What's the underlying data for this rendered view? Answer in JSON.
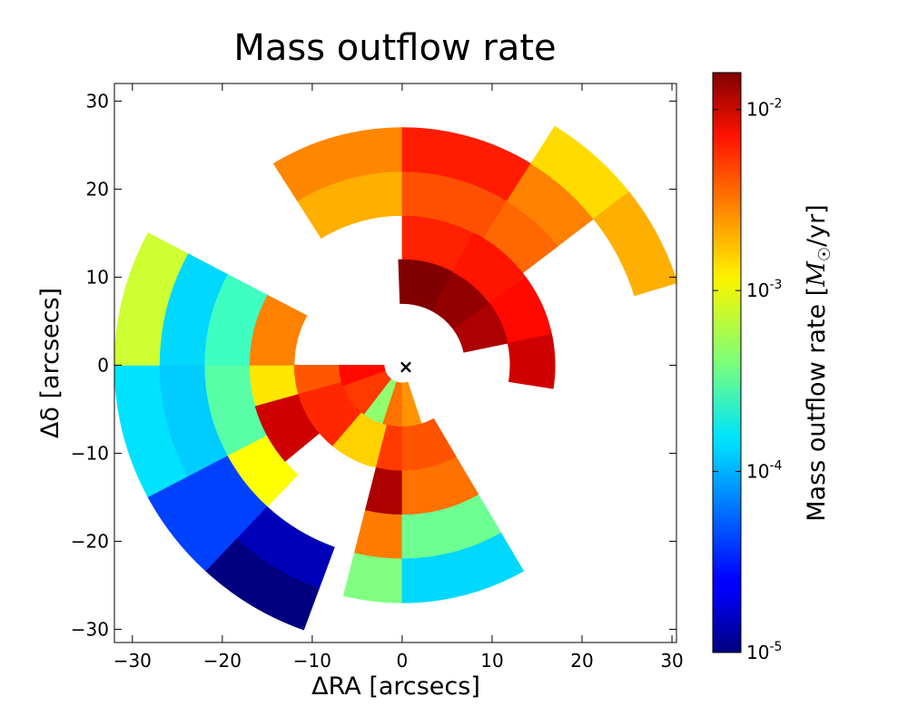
{
  "chart_data": {
    "type": "heatmap",
    "title": "Mass outflow rate",
    "xlabel": "ΔRA [arcsecs]",
    "ylabel": "Δδ [arcsecs]",
    "xlim": [
      -32,
      30.5
    ],
    "ylim": [
      -31.5,
      32
    ],
    "xticks": [
      -30,
      -20,
      -10,
      0,
      10,
      20,
      30
    ],
    "yticks": [
      -30,
      -20,
      -10,
      0,
      10,
      20,
      30
    ],
    "xtick_labels": [
      "−30",
      "−20",
      "−10",
      "0",
      "10",
      "20",
      "30"
    ],
    "ytick_labels": [
      "−30",
      "−20",
      "−10",
      "0",
      "10",
      "20",
      "30"
    ],
    "center_marker": {
      "x": 0,
      "y": 0,
      "symbol": "×"
    },
    "colorbar": {
      "label": "Mass outflow rate [M☉/yr]",
      "label_prefix": "Mass outflow rate ",
      "label_unit_symbol": "M",
      "label_unit_sub": "☉",
      "label_unit_rest": "/yr",
      "scale": "log",
      "min": 1e-05,
      "max": 0.016,
      "colormap": "jet",
      "ticks": [
        {
          "value": 1e-05,
          "base": "10",
          "exp": "-5"
        },
        {
          "value": 0.0001,
          "base": "10",
          "exp": "-4"
        },
        {
          "value": 0.001,
          "base": "10",
          "exp": "-3"
        },
        {
          "value": 0.01,
          "base": "10",
          "exp": "-2"
        }
      ]
    },
    "annular_sectors": [
      {
        "r_inner": 17,
        "r_outer": 22,
        "theta_start": 90,
        "theta_end": 122,
        "value": 0.0018
      },
      {
        "r_inner": 22,
        "r_outer": 27,
        "theta_start": 90,
        "theta_end": 122,
        "value": 0.0024
      },
      {
        "r_inner": 12,
        "r_outer": 17,
        "theta_start": 58,
        "theta_end": 90,
        "value": 0.005
      },
      {
        "r_inner": 17,
        "r_outer": 22,
        "theta_start": 58,
        "theta_end": 90,
        "value": 0.0036
      },
      {
        "r_inner": 22,
        "r_outer": 27,
        "theta_start": 58,
        "theta_end": 90,
        "value": 0.0052
      },
      {
        "r_inner": 17,
        "r_outer": 22,
        "theta_start": 38,
        "theta_end": 58,
        "value": 0.003
      },
      {
        "r_inner": 22,
        "r_outer": 27,
        "theta_start": 38,
        "theta_end": 58,
        "value": 0.0025
      },
      {
        "r_inner": 27,
        "r_outer": 32,
        "theta_start": 38,
        "theta_end": 58,
        "value": 0.0013
      },
      {
        "r_inner": 27,
        "r_outer": 32,
        "theta_start": 17,
        "theta_end": 38,
        "value": 0.0018
      },
      {
        "r_inner": 7,
        "r_outer": 12,
        "theta_start": 62,
        "theta_end": 92,
        "value": 0.016
      },
      {
        "r_inner": 7,
        "r_outer": 12,
        "theta_start": 36,
        "theta_end": 62,
        "value": 0.014
      },
      {
        "r_inner": 12,
        "r_outer": 17,
        "theta_start": 36,
        "theta_end": 62,
        "value": 0.0055
      },
      {
        "r_inner": 12,
        "r_outer": 17,
        "theta_start": 12,
        "theta_end": 36,
        "value": 0.006
      },
      {
        "r_inner": 12,
        "r_outer": 17,
        "theta_start": -9,
        "theta_end": 12,
        "value": 0.009
      },
      {
        "r_inner": 7,
        "r_outer": 12,
        "theta_start": 12,
        "theta_end": 36,
        "value": 0.0115
      },
      {
        "r_inner": 12,
        "r_outer": 17,
        "theta_start": 180,
        "theta_end": 208,
        "value": 0.0012
      },
      {
        "r_inner": 17,
        "r_outer": 22,
        "theta_start": 180,
        "theta_end": 208,
        "value": 0.0003
      },
      {
        "r_inner": 22,
        "r_outer": 27,
        "theta_start": 180,
        "theta_end": 208,
        "value": 0.00011
      },
      {
        "r_inner": 27,
        "r_outer": 32,
        "theta_start": 180,
        "theta_end": 208,
        "value": 0.00013
      },
      {
        "r_inner": 12,
        "r_outer": 17,
        "theta_start": 152,
        "theta_end": 180,
        "value": 0.0025
      },
      {
        "r_inner": 17,
        "r_outer": 22,
        "theta_start": 152,
        "theta_end": 180,
        "value": 0.00025
      },
      {
        "r_inner": 22,
        "r_outer": 27,
        "theta_start": 152,
        "theta_end": 180,
        "value": 0.00012
      },
      {
        "r_inner": 27,
        "r_outer": 32,
        "theta_start": 152,
        "theta_end": 180,
        "value": 0.0007
      },
      {
        "r_inner": 17,
        "r_outer": 22,
        "theta_start": 208,
        "theta_end": 227,
        "value": 0.001
      },
      {
        "r_inner": 22,
        "r_outer": 27,
        "theta_start": 208,
        "theta_end": 227,
        "value": 4e-05
      },
      {
        "r_inner": 27,
        "r_outer": 32,
        "theta_start": 208,
        "theta_end": 227,
        "value": 4e-05
      },
      {
        "r_inner": 22,
        "r_outer": 27,
        "theta_start": 227,
        "theta_end": 250,
        "value": 1.5e-05
      },
      {
        "r_inner": 27,
        "r_outer": 32,
        "theta_start": 227,
        "theta_end": 250,
        "value": 1e-05
      },
      {
        "r_inner": 7,
        "r_outer": 12,
        "theta_start": 180,
        "theta_end": 196,
        "value": 0.0034
      },
      {
        "r_inner": 12,
        "r_outer": 17,
        "theta_start": 196,
        "theta_end": 220,
        "value": 0.009
      },
      {
        "r_inner": 7,
        "r_outer": 12,
        "theta_start": 196,
        "theta_end": 230,
        "value": 0.0048
      },
      {
        "r_inner": 7,
        "r_outer": 12,
        "theta_start": 230,
        "theta_end": 256,
        "value": 0.0014
      },
      {
        "r_inner": 2,
        "r_outer": 7,
        "theta_start": 180,
        "theta_end": 200,
        "value": 0.006
      },
      {
        "r_inner": 2,
        "r_outer": 7,
        "theta_start": 200,
        "theta_end": 233,
        "value": 0.0042
      },
      {
        "r_inner": 2,
        "r_outer": 7,
        "theta_start": 233,
        "theta_end": 252,
        "value": 0.00045
      },
      {
        "r_inner": 2,
        "r_outer": 7,
        "theta_start": 252,
        "theta_end": 270,
        "value": 0.0028
      },
      {
        "r_inner": 2,
        "r_outer": 7,
        "theta_start": 270,
        "theta_end": 288,
        "value": 0.0022
      },
      {
        "r_inner": 7,
        "r_outer": 12,
        "theta_start": 256,
        "theta_end": 270,
        "value": 0.0042
      },
      {
        "r_inner": 12,
        "r_outer": 17,
        "theta_start": 256,
        "theta_end": 270,
        "value": 0.0115
      },
      {
        "r_inner": 17,
        "r_outer": 22,
        "theta_start": 256,
        "theta_end": 270,
        "value": 0.0026
      },
      {
        "r_inner": 22,
        "r_outer": 27,
        "theta_start": 256,
        "theta_end": 270,
        "value": 0.0004
      },
      {
        "r_inner": 7,
        "r_outer": 12,
        "theta_start": 270,
        "theta_end": 300,
        "value": 0.0035
      },
      {
        "r_inner": 12,
        "r_outer": 17,
        "theta_start": 270,
        "theta_end": 300,
        "value": 0.0028
      },
      {
        "r_inner": 17,
        "r_outer": 22,
        "theta_start": 270,
        "theta_end": 300,
        "value": 0.00035
      },
      {
        "r_inner": 22,
        "r_outer": 27,
        "theta_start": 270,
        "theta_end": 300,
        "value": 0.00012
      }
    ]
  }
}
